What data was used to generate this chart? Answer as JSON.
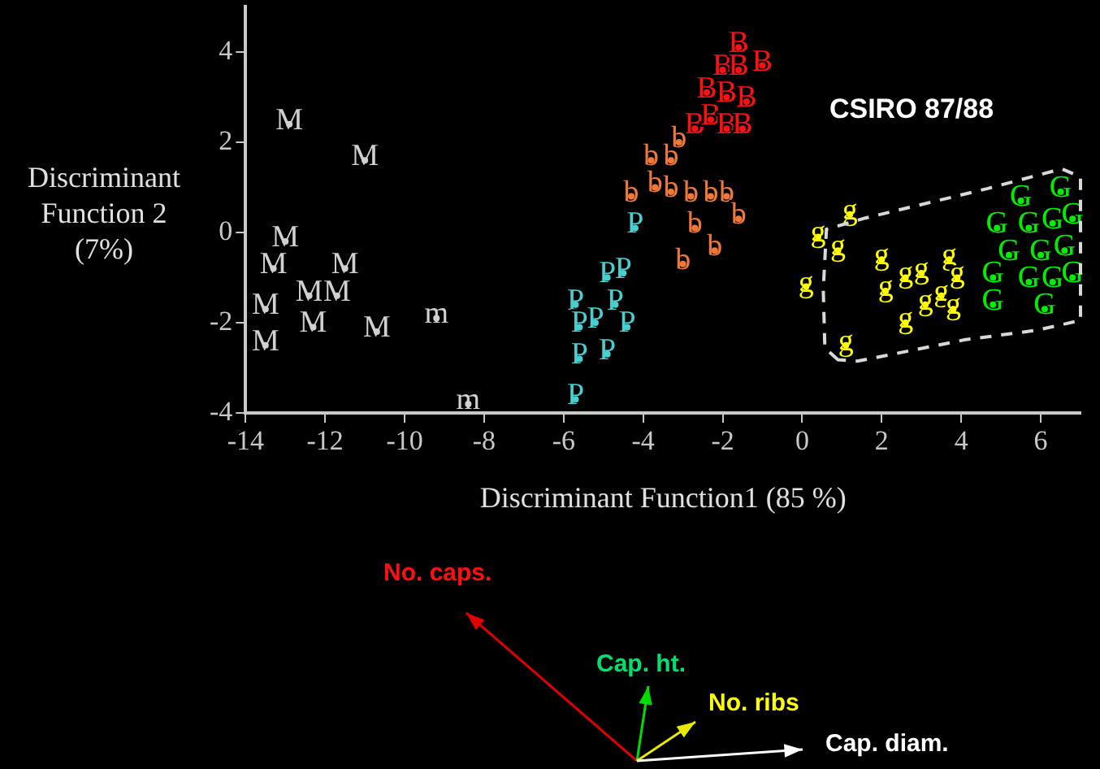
{
  "chart_data": {
    "type": "scatter",
    "xlabel": "Discriminant Function1 (85 %)",
    "ylabel": "Discriminant Function 2 (7%)",
    "annotations": [
      "CSIRO 87/88",
      "No. caps.",
      "Cap. ht.",
      "No. ribs",
      "Cap. diam."
    ],
    "xlim": [
      -14,
      7
    ],
    "ylim": [
      -4,
      5
    ],
    "xticks": [
      -14,
      -12,
      -10,
      -8,
      -6,
      -4,
      -2,
      0,
      2,
      4,
      6
    ],
    "yticks": [
      -4,
      -2,
      0,
      2,
      4
    ],
    "grid": false,
    "legend": false,
    "series": [
      {
        "name": "M",
        "color": "#d0d0d0",
        "x": [
          -12.9,
          -11.0,
          -13.0,
          -13.3,
          -11.5,
          -12.4,
          -11.7,
          -13.5,
          -12.3,
          -10.7,
          -13.5
        ],
        "values": [
          2.4,
          1.6,
          -0.2,
          -0.8,
          -0.8,
          -1.4,
          -1.4,
          -1.7,
          -2.1,
          -2.2,
          -2.5
        ]
      },
      {
        "name": "m",
        "color": "#d0d0d0",
        "x": [
          -9.2,
          -8.4
        ],
        "values": [
          -1.9,
          -3.8
        ]
      },
      {
        "name": "B",
        "color": "#ff1010",
        "x": [
          -1.6,
          -1.0,
          -2.0,
          -1.6,
          -2.4,
          -1.9,
          -1.4,
          -2.7,
          -2.3,
          -1.9,
          -1.5
        ],
        "values": [
          4.1,
          3.7,
          3.6,
          3.6,
          3.1,
          3.0,
          2.9,
          2.3,
          2.5,
          2.3,
          2.3
        ]
      },
      {
        "name": "b",
        "color": "#f07838",
        "x": [
          -3.1,
          -3.8,
          -3.3,
          -4.3,
          -3.7,
          -3.3,
          -2.8,
          -2.3,
          -1.9,
          -1.6,
          -2.7,
          -3.0,
          -2.2
        ],
        "values": [
          2.0,
          1.6,
          1.6,
          0.8,
          1.0,
          0.9,
          0.8,
          0.8,
          0.8,
          0.3,
          0.1,
          -0.7,
          -0.4
        ]
      },
      {
        "name": "P",
        "color": "#48d0d0",
        "x": [
          -4.2,
          -4.5,
          -4.9,
          -5.7,
          -4.7,
          -5.6,
          -5.2,
          -4.4,
          -5.6,
          -4.9,
          -5.7
        ],
        "values": [
          0.1,
          -0.9,
          -1.0,
          -1.6,
          -1.6,
          -2.1,
          -2.0,
          -2.1,
          -2.8,
          -2.7,
          -3.7
        ]
      },
      {
        "name": "g",
        "color": "#ffff00",
        "x": [
          1.2,
          0.4,
          0.9,
          0.1,
          1.1,
          2.0,
          2.1,
          2.6,
          3.0,
          2.6,
          3.1,
          3.5,
          3.7,
          3.9,
          3.8
        ],
        "values": [
          0.4,
          -0.1,
          -0.4,
          -1.2,
          -2.5,
          -0.6,
          -1.3,
          -1.0,
          -0.9,
          -2.0,
          -1.6,
          -1.4,
          -0.6,
          -1.0,
          -1.7
        ]
      },
      {
        "name": "G",
        "color": "#00ee00",
        "x": [
          4.9,
          5.5,
          6.5,
          5.7,
          6.3,
          6.8,
          5.2,
          6.0,
          6.6,
          4.8,
          5.7,
          6.3,
          6.8,
          4.8,
          6.1
        ],
        "values": [
          0.1,
          0.7,
          0.9,
          0.1,
          0.2,
          0.3,
          -0.5,
          -0.5,
          -0.4,
          -1.0,
          -1.1,
          -1.1,
          -1.0,
          -1.6,
          -1.7
        ]
      }
    ]
  }
}
